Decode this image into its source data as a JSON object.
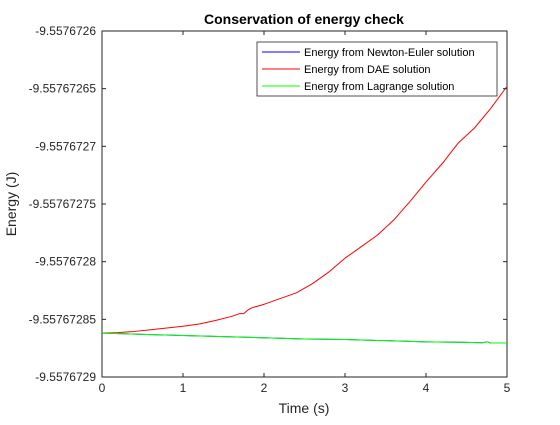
{
  "window": {
    "background": "#ffffff"
  },
  "chart_data": {
    "type": "line",
    "title": "Conservation of energy check",
    "xlabel": "Time (s)",
    "ylabel": "Energy (J)",
    "xlim": [
      0,
      5
    ],
    "ylim": [
      -9.5576729,
      -9.5576726
    ],
    "x_ticks": [
      0,
      1,
      2,
      3,
      4,
      5
    ],
    "x_tick_labels": [
      "0",
      "1",
      "2",
      "3",
      "4",
      "5"
    ],
    "y_ticks": [
      -9.5576726,
      -9.55767265,
      -9.5576727,
      -9.55767275,
      -9.5576728,
      -9.55767285,
      -9.5576729
    ],
    "y_tick_labels": [
      "-9.5576726",
      "-9.55767265",
      "-9.5576727",
      "-9.55767275",
      "-9.5576728",
      "-9.55767285",
      "-9.5576729"
    ],
    "grid": false,
    "legend": {
      "position": "top-right",
      "entries": [
        "Energy from Newton-Euler solution",
        "Energy from DAE solution",
        "Energy from Lagrange solution"
      ]
    },
    "series": [
      {
        "name": "Energy from Newton-Euler solution",
        "color": "#0000ff",
        "x": [
          0,
          0.5,
          1,
          1.5,
          2,
          2.5,
          3,
          3.5,
          4,
          4.5,
          4.7,
          4.75,
          4.8,
          5
        ],
        "y": [
          -9.557672862,
          -9.557672863,
          -9.557672864,
          -9.557672865,
          -9.557672866,
          -9.557672867,
          -9.5576728675,
          -9.5576728685,
          -9.5576728695,
          -9.55767287,
          -9.5576728703,
          -9.5576728695,
          -9.5576728705,
          -9.5576728705
        ]
      },
      {
        "name": "Energy from DAE solution",
        "color": "#ff0000",
        "x": [
          0,
          0.2,
          0.4,
          0.6,
          0.8,
          1.0,
          1.2,
          1.4,
          1.6,
          1.7,
          1.75,
          1.8,
          1.85,
          2.0,
          2.2,
          2.4,
          2.6,
          2.8,
          3.0,
          3.2,
          3.4,
          3.6,
          3.8,
          4.0,
          4.2,
          4.4,
          4.6,
          4.8,
          5.0
        ],
        "y": [
          -9.557672862,
          -9.5576728615,
          -9.5576728605,
          -9.557672859,
          -9.5576728575,
          -9.557672856,
          -9.557672854,
          -9.557672851,
          -9.5576728475,
          -9.557672845,
          -9.557672845,
          -9.557672842,
          -9.55767284,
          -9.557672837,
          -9.557672832,
          -9.557672827,
          -9.557672819,
          -9.557672809,
          -9.557672797,
          -9.557672787,
          -9.557672777,
          -9.557672764,
          -9.557672748,
          -9.557672731,
          -9.557672715,
          -9.557672697,
          -9.557672684,
          -9.557672667,
          -9.557672648
        ]
      },
      {
        "name": "Energy from Lagrange solution",
        "color": "#00ff00",
        "x": [
          0,
          0.5,
          1,
          1.5,
          2,
          2.5,
          3,
          3.5,
          4,
          4.5,
          4.7,
          4.75,
          4.8,
          5
        ],
        "y": [
          -9.557672862,
          -9.557672863,
          -9.557672864,
          -9.557672865,
          -9.557672866,
          -9.557672867,
          -9.5576728675,
          -9.5576728685,
          -9.5576728695,
          -9.55767287,
          -9.5576728703,
          -9.5576728695,
          -9.5576728705,
          -9.5576728705
        ]
      }
    ]
  }
}
